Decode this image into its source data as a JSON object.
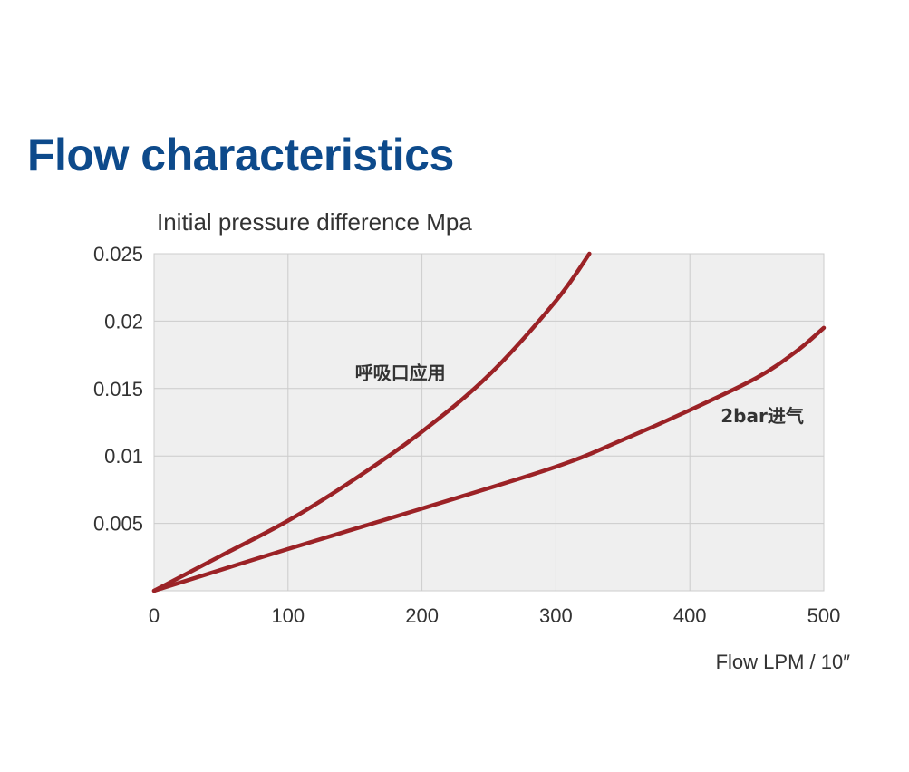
{
  "title": "Flow characteristics",
  "chart_data": {
    "type": "line",
    "ylabel": "Initial pressure difference  Mpa",
    "xlabel": "Flow  LPM / 10″",
    "xlim": [
      0,
      500
    ],
    "ylim": [
      0,
      0.025
    ],
    "x_ticks": [
      {
        "value": 0,
        "label": "0"
      },
      {
        "value": 100,
        "label": "100"
      },
      {
        "value": 200,
        "label": "200"
      },
      {
        "value": 300,
        "label": "300"
      },
      {
        "value": 400,
        "label": "400"
      },
      {
        "value": 500,
        "label": "500"
      }
    ],
    "y_ticks": [
      {
        "value": 0.005,
        "label": "0.005"
      },
      {
        "value": 0.01,
        "label": "0.01"
      },
      {
        "value": 0.015,
        "label": "0.015"
      },
      {
        "value": 0.02,
        "label": "0.02"
      },
      {
        "value": 0.025,
        "label": "0.025"
      }
    ],
    "grid": true,
    "line_color": "#9b2226",
    "plot_background": "#efefef",
    "grid_color": "#cccccc",
    "series": [
      {
        "name": "呼吸口应用",
        "points": [
          [
            0,
            0
          ],
          [
            50,
            0.0026
          ],
          [
            100,
            0.0052
          ],
          [
            150,
            0.0083
          ],
          [
            200,
            0.0118
          ],
          [
            250,
            0.016
          ],
          [
            300,
            0.0215
          ],
          [
            325,
            0.025
          ]
        ]
      },
      {
        "name": "2bar进气",
        "points": [
          [
            0,
            0
          ],
          [
            100,
            0.0031
          ],
          [
            200,
            0.0061
          ],
          [
            300,
            0.0092
          ],
          [
            350,
            0.0112
          ],
          [
            400,
            0.0134
          ],
          [
            450,
            0.0158
          ],
          [
            480,
            0.0178
          ],
          [
            500,
            0.0195
          ]
        ]
      }
    ]
  }
}
